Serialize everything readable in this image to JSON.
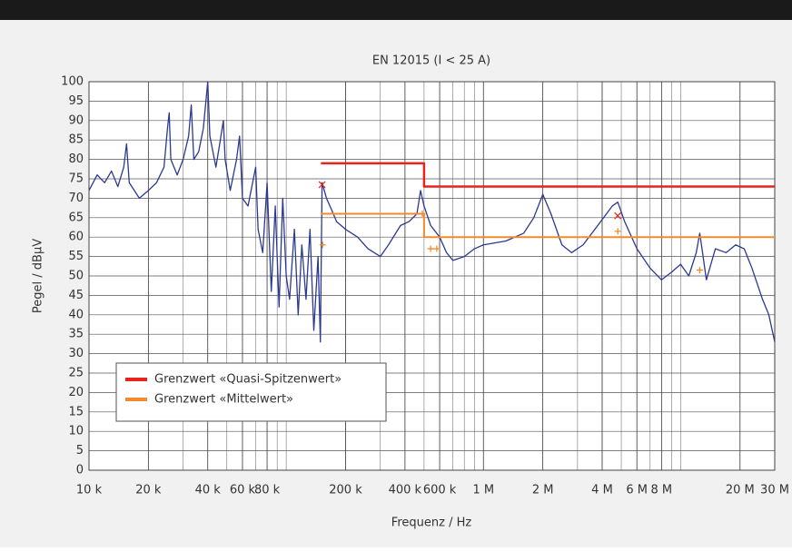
{
  "chart_data": {
    "type": "line",
    "title": "EN 12015 (I < 25 A)",
    "x_label": "Frequenz / Hz",
    "y_label": "Pegel / dBµV",
    "xscale": "log",
    "xlim": [
      10000,
      30000000
    ],
    "ylim": [
      0,
      100
    ],
    "xticks": [
      {
        "value": 10000,
        "label": "10 k"
      },
      {
        "value": 20000,
        "label": "20 k"
      },
      {
        "value": 40000,
        "label": "40 k"
      },
      {
        "value": 60000,
        "label": "60 k"
      },
      {
        "value": 80000,
        "label": "80 k"
      },
      {
        "value": 200000,
        "label": "200 k"
      },
      {
        "value": 400000,
        "label": "400 k"
      },
      {
        "value": 600000,
        "label": "600 k"
      },
      {
        "value": 1000000,
        "label": "1 M"
      },
      {
        "value": 2000000,
        "label": "2 M"
      },
      {
        "value": 4000000,
        "label": "4 M"
      },
      {
        "value": 6000000,
        "label": "6 M"
      },
      {
        "value": 8000000,
        "label": "8 M"
      },
      {
        "value": 20000000,
        "label": "20 M"
      },
      {
        "value": 30000000,
        "label": "30 M"
      }
    ],
    "yticks": [
      0,
      5,
      10,
      15,
      20,
      25,
      30,
      35,
      40,
      45,
      50,
      55,
      60,
      65,
      70,
      75,
      80,
      85,
      90,
      95,
      100
    ],
    "grid": true,
    "legend": "lower left",
    "series": [
      {
        "color": "#2b3990",
        "mode": "line",
        "width": 1.3,
        "x": [
          10000,
          11000,
          12000,
          13000,
          14000,
          15000,
          15500,
          16000,
          18000,
          20000,
          22000,
          24000,
          25000,
          25500,
          26000,
          28000,
          30000,
          32000,
          33000,
          34000,
          36000,
          38000,
          40000,
          41000,
          44000,
          46000,
          48000,
          49000,
          52000,
          56000,
          58000,
          60000,
          64000,
          70000,
          72000,
          76000,
          80000,
          84000,
          88000,
          92000,
          96000,
          100000,
          104000,
          110000,
          115000,
          120000,
          126000,
          132000,
          138000,
          145000,
          149000,
          152000,
          160000,
          170000,
          180000,
          200000,
          230000,
          260000,
          300000,
          330000,
          380000,
          420000,
          460000,
          480000,
          500000,
          540000,
          600000,
          650000,
          700000,
          800000,
          900000,
          1000000,
          1300000,
          1600000,
          1800000,
          2000000,
          2200000,
          2500000,
          2800000,
          3200000,
          3800000,
          4500000,
          4800000,
          5200000,
          6000000,
          7000000,
          8000000,
          9000000,
          10000000,
          11000000,
          12000000,
          12500000,
          13000000,
          13500000,
          15000000,
          17000000,
          19000000,
          21000000,
          23000000,
          26000000,
          28000000,
          30000000
        ],
        "values": [
          72,
          76,
          74,
          77,
          73,
          78,
          84,
          74,
          70,
          72,
          74,
          78,
          88,
          92,
          80,
          76,
          80,
          86,
          94,
          80,
          82,
          88,
          100,
          86,
          78,
          84,
          90,
          80,
          72,
          80,
          86,
          70,
          68,
          78,
          62,
          56,
          74,
          46,
          68,
          42,
          70,
          50,
          44,
          62,
          40,
          58,
          44,
          62,
          36,
          55,
          33,
          74,
          70,
          67,
          64,
          62,
          60,
          57,
          55,
          58,
          63,
          64,
          66,
          72,
          68,
          63,
          60,
          56,
          54,
          55,
          57,
          58,
          59,
          61,
          65,
          71,
          66,
          58,
          56,
          58,
          63,
          68,
          69,
          64,
          57,
          52,
          49,
          51,
          53,
          50,
          56,
          61,
          55,
          49,
          57,
          56,
          58,
          57,
          52,
          44,
          40,
          33
        ]
      },
      {
        "name": "Grenzwert «Quasi-Spitzenwert»",
        "color": "#e8231c",
        "mode": "line",
        "width": 2.5,
        "x": [
          150000,
          500000,
          500000,
          30000000
        ],
        "values": [
          79,
          79,
          73,
          73
        ]
      },
      {
        "name": "Grenzwert «Mittelwert»",
        "color": "#f28a2e",
        "mode": "line",
        "width": 2,
        "x": [
          150000,
          500000,
          500000,
          30000000
        ],
        "values": [
          66,
          66,
          60,
          60
        ]
      },
      {
        "color": "#e8231c",
        "mode": "markers",
        "marker": "x",
        "x": [
          152000,
          4800000
        ],
        "values": [
          73.5,
          65.5
        ]
      },
      {
        "color": "#f28a2e",
        "mode": "markers",
        "marker": "+",
        "x": [
          153000,
          490000,
          540000,
          580000,
          4800000,
          12500000
        ],
        "values": [
          58,
          66,
          57,
          57,
          61.5,
          51.5
        ]
      }
    ]
  }
}
